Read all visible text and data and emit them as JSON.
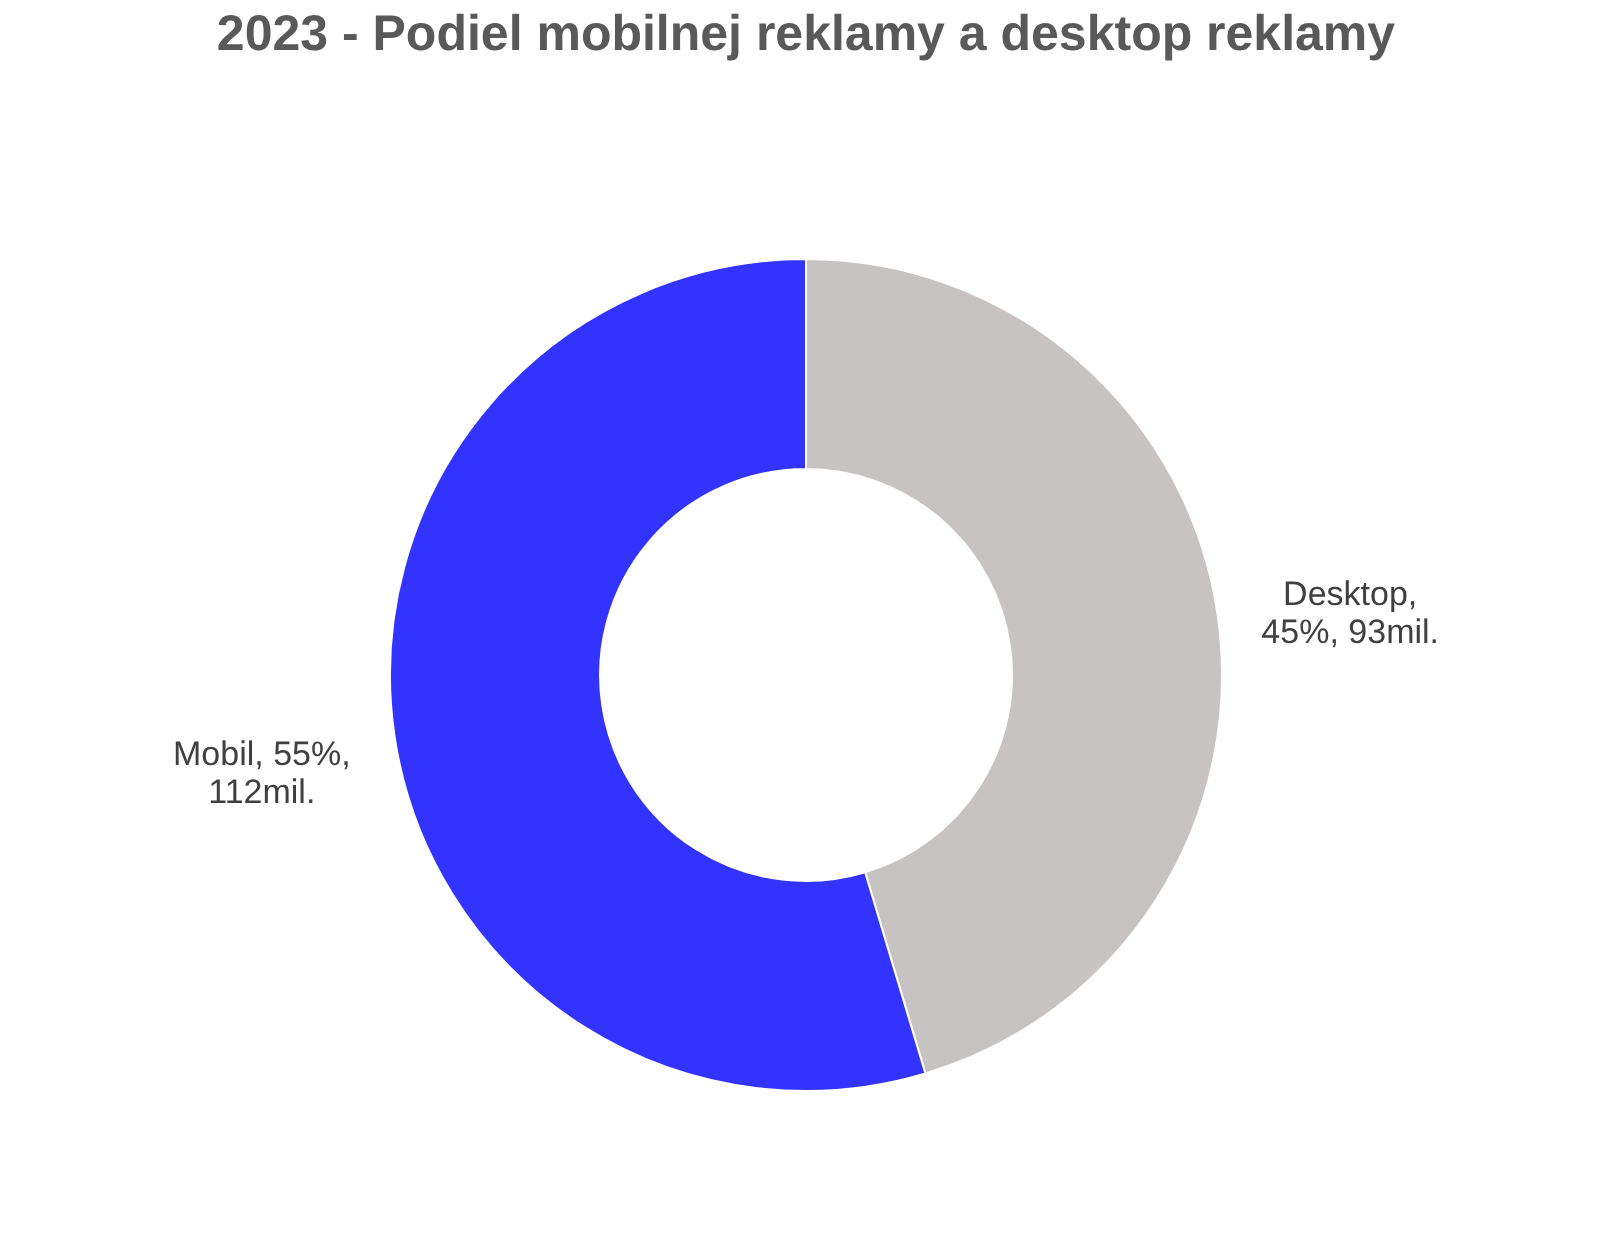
{
  "chart_data": {
    "type": "donut",
    "title": "2023 - Podiel mobilnej reklamy a desktop reklamy",
    "categories": [
      "Desktop",
      "Mobil"
    ],
    "values": [
      93,
      112
    ],
    "colors": [
      "#c8c3c3",
      "#3333ff"
    ],
    "value_labels": [
      ", 45%, 93mil.",
      ", 55%, 112mil."
    ],
    "legend": false
  }
}
